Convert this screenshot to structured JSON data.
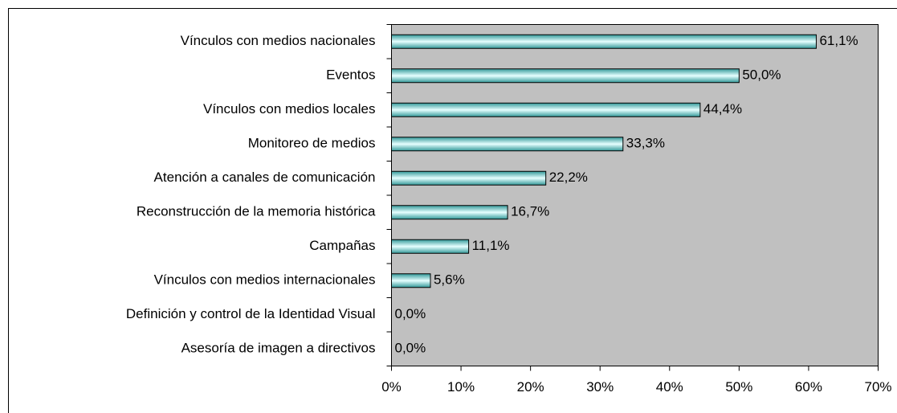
{
  "chart_data": {
    "type": "bar",
    "orientation": "horizontal",
    "categories": [
      "Vínculos con medios nacionales",
      "Eventos",
      "Vínculos con medios locales",
      "Monitoreo de medios",
      "Atención a canales de comunicación",
      "Reconstrucción de la memoria histórica",
      "Campañas",
      "Vínculos con medios internacionales",
      "Definición y control de la Identidad Visual",
      "Asesoría de imagen a directivos"
    ],
    "values": [
      61.1,
      50.0,
      44.4,
      33.3,
      22.2,
      16.7,
      11.1,
      5.6,
      0,
      0
    ],
    "value_labels": [
      "61,1%",
      "50,0%",
      "44,4%",
      "33,3%",
      "22,2%",
      "16,7%",
      "11,1%",
      "5,6%",
      "0,0%",
      "0,0%"
    ],
    "color": "#339999",
    "xlim": [
      0,
      70
    ],
    "xticks": [
      {
        "value": 0,
        "label": "0%"
      },
      {
        "value": 10,
        "label": "10%"
      },
      {
        "value": 20,
        "label": "20%"
      },
      {
        "value": 30,
        "label": "30%"
      },
      {
        "value": 40,
        "label": "40%"
      },
      {
        "value": 50,
        "label": "50%"
      },
      {
        "value": 60,
        "label": "60%"
      },
      {
        "value": 70,
        "label": "70%"
      }
    ],
    "grid": false
  }
}
